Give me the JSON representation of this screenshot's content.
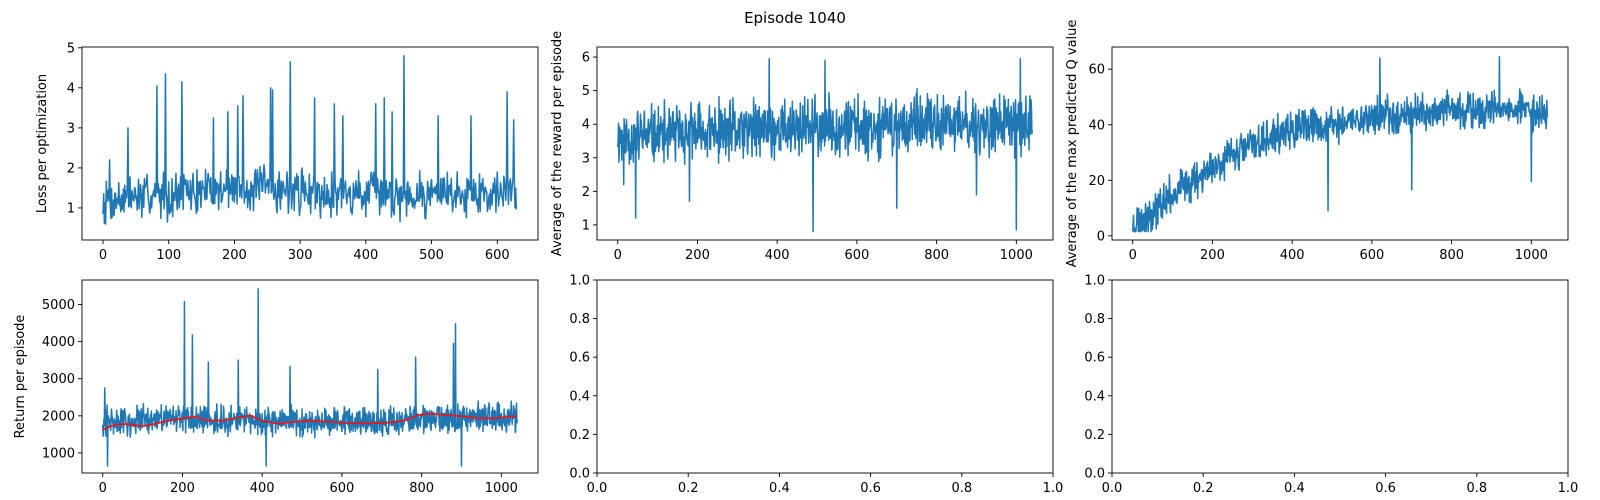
{
  "figure": {
    "title": "Episode 1040"
  },
  "colors": {
    "series": "#1f77b4",
    "moving_average": "#e31a1c",
    "axes": "#000000",
    "background": "#ffffff"
  },
  "chart_data": [
    {
      "id": "loss",
      "type": "line",
      "title": "",
      "xlabel": "",
      "ylabel": "Loss per optimization",
      "xlim": [
        -32,
        662
      ],
      "ylim": [
        0.2,
        5.02
      ],
      "xticks": [
        0,
        100,
        200,
        300,
        400,
        500,
        600
      ],
      "yticks": [
        1,
        2,
        3,
        4,
        5
      ],
      "series": [
        {
          "kind": "noisy",
          "n": 630,
          "x_start": 0,
          "x_step": 1,
          "baseline": [
            [
              0,
              1.2
            ],
            [
              200,
              1.5
            ],
            [
              400,
              1.35
            ],
            [
              630,
              1.4
            ]
          ],
          "noise": 0.55,
          "min": 0.3,
          "max": 2.9,
          "seed": 7,
          "spikes": [
            [
              10,
              2.2
            ],
            [
              38,
              3.0
            ],
            [
              82,
              4.05
            ],
            [
              95,
              4.35
            ],
            [
              120,
              4.15
            ],
            [
              168,
              3.25
            ],
            [
              190,
              3.4
            ],
            [
              205,
              3.55
            ],
            [
              213,
              3.8
            ],
            [
              255,
              4.0
            ],
            [
              258,
              3.95
            ],
            [
              285,
              4.65
            ],
            [
              322,
              3.75
            ],
            [
              352,
              3.6
            ],
            [
              365,
              3.3
            ],
            [
              415,
              3.6
            ],
            [
              428,
              3.75
            ],
            [
              440,
              3.4
            ],
            [
              458,
              4.8
            ],
            [
              510,
              3.3
            ],
            [
              560,
              3.3
            ],
            [
              615,
              3.9
            ],
            [
              625,
              3.2
            ]
          ],
          "color": "#1f77b4"
        }
      ]
    },
    {
      "id": "reward",
      "type": "line",
      "title": "",
      "xlabel": "",
      "ylabel": "Average of the reward per episode",
      "xlim": [
        -52,
        1092
      ],
      "ylim": [
        0.55,
        6.3
      ],
      "xticks": [
        0,
        200,
        400,
        600,
        800,
        1000
      ],
      "yticks": [
        1,
        2,
        3,
        4,
        5,
        6
      ],
      "series": [
        {
          "kind": "noisy",
          "n": 1041,
          "x_start": 0,
          "x_step": 1,
          "baseline": [
            [
              0,
              3.6
            ],
            [
              300,
              3.8
            ],
            [
              600,
              3.95
            ],
            [
              1040,
              4.0
            ]
          ],
          "noise": 0.85,
          "min": 1.3,
          "max": 5.9,
          "seed": 11,
          "spikes": [
            [
              15,
              2.2
            ],
            [
              45,
              1.2
            ],
            [
              180,
              1.7
            ],
            [
              380,
              5.95
            ],
            [
              490,
              0.8
            ],
            [
              520,
              5.9
            ],
            [
              700,
              1.5
            ],
            [
              900,
              1.9
            ],
            [
              1000,
              0.85
            ],
            [
              1010,
              5.95
            ]
          ],
          "color": "#1f77b4"
        }
      ]
    },
    {
      "id": "qvalue",
      "type": "line",
      "title": "",
      "xlabel": "",
      "ylabel": "Average of the max predicted Q value",
      "xlim": [
        -52,
        1092
      ],
      "ylim": [
        -1.5,
        68
      ],
      "xticks": [
        0,
        200,
        400,
        600,
        800,
        1000
      ],
      "yticks": [
        0,
        20,
        40,
        60
      ],
      "series": [
        {
          "kind": "noisy",
          "n": 1041,
          "x_start": 0,
          "x_step": 1,
          "baseline": [
            [
              0,
              4
            ],
            [
              50,
              9
            ],
            [
              100,
              15
            ],
            [
              200,
              25
            ],
            [
              300,
              33
            ],
            [
              400,
              38
            ],
            [
              500,
              40
            ],
            [
              600,
              43
            ],
            [
              800,
              45
            ],
            [
              1040,
              45
            ]
          ],
          "noise": 6.5,
          "min": 1.5,
          "max": 63,
          "seed": 23,
          "spikes": [
            [
              490,
              9
            ],
            [
              620,
              64
            ],
            [
              700,
              16.5
            ],
            [
              920,
              64.5
            ],
            [
              1000,
              19.5
            ]
          ],
          "color": "#1f77b4"
        }
      ]
    },
    {
      "id": "return",
      "type": "line",
      "title": "",
      "xlabel": "",
      "ylabel": "Return per episode",
      "xlim": [
        -52,
        1092
      ],
      "ylim": [
        460,
        5660
      ],
      "xticks": [
        0,
        200,
        400,
        600,
        800,
        1000
      ],
      "yticks": [
        1000,
        2000,
        3000,
        4000,
        5000
      ],
      "series": [
        {
          "kind": "noisy",
          "n": 1041,
          "x_start": 0,
          "x_step": 1,
          "baseline": [
            [
              0,
              1850
            ],
            [
              200,
              1900
            ],
            [
              400,
              1850
            ],
            [
              700,
              1850
            ],
            [
              850,
              1950
            ],
            [
              1040,
              1950
            ]
          ],
          "noise": 380,
          "min": 700,
          "max": 2900,
          "seed": 31,
          "spikes": [
            [
              5,
              2750
            ],
            [
              12,
              650
            ],
            [
              205,
              5080
            ],
            [
              225,
              4180
            ],
            [
              265,
              3450
            ],
            [
              340,
              3500
            ],
            [
              390,
              5420
            ],
            [
              410,
              650
            ],
            [
              470,
              3330
            ],
            [
              690,
              3250
            ],
            [
              785,
              3580
            ],
            [
              880,
              3950
            ],
            [
              885,
              4480
            ],
            [
              900,
              650
            ]
          ],
          "color": "#1f77b4"
        },
        {
          "kind": "points",
          "label": "",
          "points": [
            [
              0,
              1620
            ],
            [
              10,
              1670
            ],
            [
              30,
              1760
            ],
            [
              60,
              1780
            ],
            [
              100,
              1720
            ],
            [
              130,
              1780
            ],
            [
              160,
              1860
            ],
            [
              200,
              1930
            ],
            [
              230,
              1980
            ],
            [
              260,
              1880
            ],
            [
              300,
              1870
            ],
            [
              340,
              1950
            ],
            [
              370,
              2010
            ],
            [
              400,
              1860
            ],
            [
              440,
              1790
            ],
            [
              470,
              1830
            ],
            [
              520,
              1870
            ],
            [
              570,
              1840
            ],
            [
              620,
              1800
            ],
            [
              670,
              1800
            ],
            [
              720,
              1820
            ],
            [
              760,
              1880
            ],
            [
              790,
              2020
            ],
            [
              820,
              2060
            ],
            [
              860,
              2030
            ],
            [
              900,
              1990
            ],
            [
              940,
              1940
            ],
            [
              980,
              1930
            ],
            [
              1010,
              1970
            ],
            [
              1040,
              1990
            ]
          ],
          "color": "#e31a1c"
        }
      ]
    },
    {
      "id": "empty1",
      "type": "line",
      "title": "",
      "xlabel": "",
      "ylabel": "",
      "xlim": [
        0,
        1
      ],
      "ylim": [
        0,
        1
      ],
      "xticks": [
        0,
        0.2,
        0.4,
        0.6,
        0.8,
        1
      ],
      "yticks": [
        0,
        0.2,
        0.4,
        0.6,
        0.8,
        1
      ],
      "tick_labels": [
        "0.0",
        "0.2",
        "0.4",
        "0.6",
        "0.8",
        "1.0"
      ],
      "series": []
    },
    {
      "id": "empty2",
      "type": "line",
      "title": "",
      "xlabel": "",
      "ylabel": "",
      "xlim": [
        0,
        1
      ],
      "ylim": [
        0,
        1
      ],
      "xticks": [
        0,
        0.2,
        0.4,
        0.6,
        0.8,
        1
      ],
      "yticks": [
        0,
        0.2,
        0.4,
        0.6,
        0.8,
        1
      ],
      "tick_labels": [
        "0.0",
        "0.2",
        "0.4",
        "0.6",
        "0.8",
        "1.0"
      ],
      "series": []
    }
  ]
}
